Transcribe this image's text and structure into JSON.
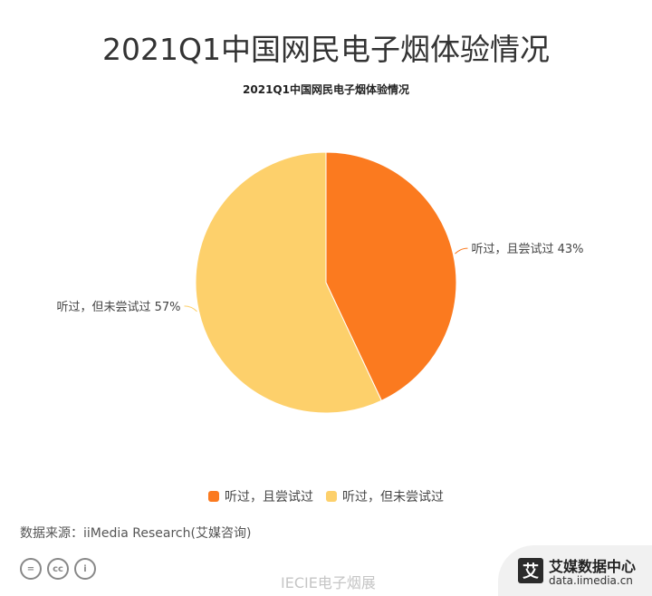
{
  "header": {
    "title": "2021Q1中国网民电子烟体验情况"
  },
  "chart_data": {
    "type": "pie",
    "title": "2021Q1中国网民电子烟体验情况",
    "slices": [
      {
        "label": "听过，且尝试过",
        "value": 43,
        "display": "听过，且尝试过 43%",
        "color": "#FB7A1F"
      },
      {
        "label": "听过，但未尝试过",
        "value": 57,
        "display": "听过，但未尝试过 57%",
        "color": "#FDD06B"
      }
    ],
    "legend_position": "bottom"
  },
  "footer": {
    "source": "数据来源：iiMedia Research(艾媒咨询)",
    "cc_icons": [
      "equals-icon",
      "cc-icon",
      "person-icon"
    ],
    "cc_labels": [
      "=",
      "cc",
      "i"
    ],
    "watermark": "IECIE电子烟展",
    "brand_logo": "艾",
    "brand_name": "艾媒数据中心",
    "brand_url": "data.iimedia.cn"
  }
}
